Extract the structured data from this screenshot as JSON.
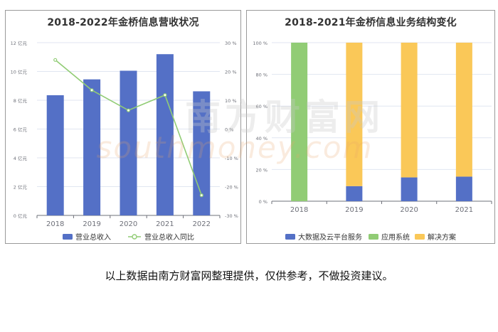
{
  "footnote": "以上数据由南方财富网整理提供，仅供参考，不做投资建议。",
  "watermark": {
    "main": "南方财富网",
    "sub": "southmoney.com"
  },
  "colors": {
    "revenue_bar": "#5470c6",
    "yoy_line": "#91cc75",
    "cloud": "#5470c6",
    "application": "#91cc75",
    "solution": "#fac858",
    "grid": "#e0e6f1",
    "axis_text": "#6e7079"
  },
  "chart_data": [
    {
      "type": "bar",
      "title": "2018-2022年金桥信息营收状况",
      "categories": [
        "2018",
        "2019",
        "2020",
        "2021",
        "2022"
      ],
      "y_left": {
        "ylim": [
          0,
          12
        ],
        "ticks": [
          0,
          2,
          4,
          6,
          8,
          10,
          12
        ],
        "unit": "亿元"
      },
      "y_right": {
        "ylim": [
          -30,
          30
        ],
        "ticks": [
          -30,
          -20,
          -10,
          0,
          10,
          20,
          30
        ],
        "unit": "%"
      },
      "series": [
        {
          "name": "营业总收入",
          "type": "bar",
          "axis": "left",
          "values": [
            8.35,
            9.45,
            10.05,
            11.2,
            8.62
          ]
        },
        {
          "name": "营业总收入同比",
          "type": "line",
          "axis": "right",
          "values": [
            24,
            13.5,
            6.5,
            11.8,
            -23
          ]
        }
      ],
      "legend": "bottom",
      "grid": true
    },
    {
      "type": "bar",
      "stacked": true,
      "title": "2018-2021年金桥信息业务结构变化",
      "categories": [
        "2018",
        "2019",
        "2020",
        "2021"
      ],
      "ylim": [
        0,
        100
      ],
      "ticks": [
        0,
        20,
        40,
        60,
        80,
        100
      ],
      "unit": "%",
      "series": [
        {
          "name": "大数据及云平台服务",
          "values": [
            0,
            9.5,
            15,
            15.5
          ]
        },
        {
          "name": "应用系统",
          "values": [
            100,
            0,
            0,
            0
          ]
        },
        {
          "name": "解决方案",
          "values": [
            0,
            90.5,
            85,
            84.5
          ]
        }
      ],
      "legend": "bottom",
      "grid": true
    }
  ]
}
